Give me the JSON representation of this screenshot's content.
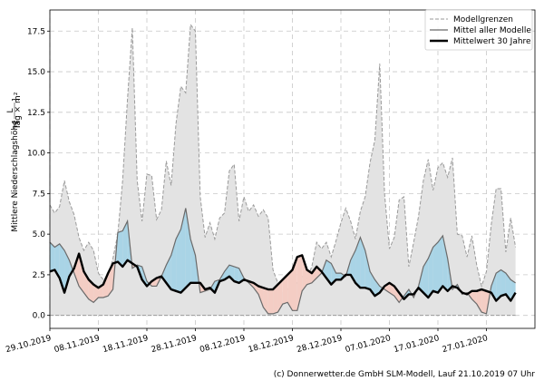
{
  "chart_data": {
    "type": "line",
    "ylabel": "Mittlere Niederschlagshöhe",
    "ylabel_unit_num": "L",
    "ylabel_unit_den": "Tag × m²",
    "ylim": [
      -0.8,
      18.8
    ],
    "yticks": [
      "0.0",
      "2.5",
      "5.0",
      "7.5",
      "10.0",
      "12.5",
      "15.0",
      "17.5"
    ],
    "ytick_values": [
      0,
      2.5,
      5,
      7.5,
      10,
      12.5,
      15,
      17.5
    ],
    "xlim": [
      0,
      100
    ],
    "xticks": [
      "29.10.2019",
      "08.11.2019",
      "18.11.2019",
      "28.11.2019",
      "08.12.2019",
      "18.12.2019",
      "28.12.2019",
      "07.01.2020",
      "17.01.2020",
      "27.01.2020"
    ],
    "xtick_values": [
      0,
      10,
      20,
      30,
      40,
      50,
      60,
      70,
      80,
      90
    ],
    "grid": true,
    "legend_position": "top-right",
    "colors": {
      "envelope_fill": "#e3e3e3",
      "envelope_line": "#9a9a9a",
      "above_fill": "#a9d4e6",
      "below_fill": "#f4cdc4",
      "model_mean": "#6a6a6a",
      "climate_mean": "#000000"
    },
    "series": [
      {
        "name": "Modellgrenzen",
        "x": [
          0,
          1,
          2,
          3,
          4,
          5,
          6,
          7,
          8,
          9,
          10,
          11,
          12,
          13,
          14,
          15,
          16,
          17,
          18,
          19,
          20,
          21,
          22,
          23,
          24,
          25,
          26,
          27,
          28,
          29,
          30,
          31,
          32,
          33,
          34,
          35,
          36,
          37,
          38,
          39,
          40,
          41,
          42,
          43,
          44,
          45,
          46,
          47,
          48,
          49,
          50,
          51,
          52,
          53,
          54,
          55,
          56,
          57,
          58,
          59,
          60,
          61,
          62,
          63,
          64,
          65,
          66,
          67,
          68,
          69,
          70,
          71,
          72,
          73,
          74,
          75,
          76,
          77,
          78,
          79,
          80,
          81,
          82,
          83,
          84,
          85,
          86,
          87,
          88,
          89,
          90,
          91,
          92,
          93,
          94,
          95,
          96
        ],
        "upper": [
          6.8,
          6.3,
          6.7,
          8.3,
          7.0,
          6.2,
          4.8,
          4.0,
          4.5,
          4.0,
          2.6,
          2.2,
          2.4,
          3.5,
          5.0,
          8.3,
          13.3,
          17.7,
          8.3,
          5.8,
          8.7,
          8.6,
          5.9,
          6.5,
          9.5,
          8.0,
          11.8,
          14.1,
          13.7,
          17.9,
          17.5,
          7.3,
          4.8,
          5.7,
          4.7,
          6.0,
          6.3,
          8.9,
          9.3,
          5.8,
          7.3,
          6.4,
          6.8,
          6.1,
          6.5,
          6.0,
          2.8,
          2.0,
          1.4,
          1.6,
          1.8,
          2.0,
          2.4,
          2.3,
          3.0,
          4.5,
          4.1,
          4.5,
          3.6,
          4.6,
          5.7,
          6.6,
          5.8,
          4.7,
          6.4,
          7.3,
          9.4,
          10.8,
          15.5,
          7.5,
          4.1,
          4.8,
          7.1,
          7.3,
          3.0,
          4.5,
          6.1,
          8.3,
          9.6,
          7.7,
          9.1,
          9.4,
          8.5,
          9.7,
          5.0,
          4.9,
          3.6,
          4.9,
          3.1,
          1.8,
          2.7,
          5.6,
          7.8,
          7.8,
          3.9,
          6.0,
          4.2
        ],
        "lower": [
          0.0,
          0.0,
          0.0,
          0.0,
          0.0,
          0.0,
          0.0,
          0.0,
          0.0,
          0.0,
          0.0,
          0.0,
          0.0,
          0.0,
          0.0,
          0.0,
          0.0,
          0.0,
          0.0,
          0.0,
          0.0,
          0.0,
          0.0,
          0.0,
          0.0,
          0.0,
          0.0,
          0.0,
          0.0,
          0.0,
          0.0,
          0.0,
          0.0,
          0.0,
          0.0,
          0.0,
          0.0,
          0.0,
          0.0,
          0.0,
          0.0,
          0.0,
          0.0,
          0.0,
          0.0,
          0.0,
          0.0,
          0.0,
          0.0,
          0.0,
          0.0,
          0.0,
          0.0,
          0.0,
          0.0,
          0.0,
          0.0,
          0.0,
          0.0,
          0.0,
          0.0,
          0.0,
          0.0,
          0.0,
          0.0,
          0.0,
          0.0,
          0.0,
          0.0,
          0.0,
          0.0,
          0.0,
          0.0,
          0.0,
          0.0,
          0.0,
          0.0,
          0.0,
          0.0,
          0.0,
          0.0,
          0.0,
          0.0,
          0.0,
          0.0,
          0.0,
          0.0,
          0.0,
          0.0,
          0.0,
          0.0,
          0.0,
          0.0,
          0.0,
          0.0,
          0.0,
          0.0
        ]
      },
      {
        "name": "Mittel aller Modelle",
        "x": [
          0,
          1,
          2,
          3,
          4,
          5,
          6,
          7,
          8,
          9,
          10,
          11,
          12,
          13,
          14,
          15,
          16,
          17,
          18,
          19,
          20,
          21,
          22,
          23,
          24,
          25,
          26,
          27,
          28,
          29,
          30,
          31,
          32,
          33,
          34,
          35,
          36,
          37,
          38,
          39,
          40,
          41,
          42,
          43,
          44,
          45,
          46,
          47,
          48,
          49,
          50,
          51,
          52,
          53,
          54,
          55,
          56,
          57,
          58,
          59,
          60,
          61,
          62,
          63,
          64,
          65,
          66,
          67,
          68,
          69,
          70,
          71,
          72,
          73,
          74,
          75,
          76,
          77,
          78,
          79,
          80,
          81,
          82,
          83,
          84,
          85,
          86,
          87,
          88,
          89,
          90,
          91,
          92,
          93,
          94,
          95,
          96
        ],
        "values": [
          4.5,
          4.2,
          4.4,
          4.0,
          3.4,
          2.6,
          1.8,
          1.4,
          1.0,
          0.8,
          1.1,
          1.1,
          1.2,
          1.6,
          5.1,
          5.2,
          5.8,
          2.9,
          3.1,
          3.0,
          2.1,
          1.8,
          1.8,
          2.4,
          3.1,
          3.7,
          4.7,
          5.3,
          6.6,
          4.7,
          3.7,
          1.4,
          1.5,
          1.6,
          2.1,
          2.2,
          2.7,
          3.1,
          3.0,
          2.9,
          2.3,
          2.0,
          1.7,
          1.3,
          0.5,
          0.1,
          0.1,
          0.2,
          0.7,
          0.8,
          0.3,
          0.3,
          1.5,
          1.9,
          2.0,
          2.3,
          2.6,
          3.4,
          3.2,
          2.6,
          2.6,
          2.4,
          3.4,
          4.0,
          4.8,
          4.0,
          2.7,
          2.2,
          1.8,
          1.6,
          1.4,
          1.2,
          0.8,
          1.2,
          1.6,
          1.1,
          1.8,
          3.0,
          3.5,
          4.2,
          4.5,
          4.9,
          3.5,
          1.6,
          1.9,
          1.3,
          1.4,
          1.0,
          0.7,
          0.2,
          0.1,
          1.8,
          2.6,
          2.8,
          2.6,
          2.2,
          2.0
        ]
      },
      {
        "name": "Mittelwert 30 Jahre",
        "x": [
          0,
          1,
          2,
          3,
          4,
          5,
          6,
          7,
          8,
          9,
          10,
          11,
          12,
          13,
          14,
          15,
          16,
          17,
          18,
          19,
          20,
          21,
          22,
          23,
          24,
          25,
          26,
          27,
          28,
          29,
          30,
          31,
          32,
          33,
          34,
          35,
          36,
          37,
          38,
          39,
          40,
          41,
          42,
          43,
          44,
          45,
          46,
          47,
          48,
          49,
          50,
          51,
          52,
          53,
          54,
          55,
          56,
          57,
          58,
          59,
          60,
          61,
          62,
          63,
          64,
          65,
          66,
          67,
          68,
          69,
          70,
          71,
          72,
          73,
          74,
          75,
          76,
          77,
          78,
          79,
          80,
          81,
          82,
          83,
          84,
          85,
          86,
          87,
          88,
          89,
          90,
          91,
          92,
          93,
          94,
          95,
          96
        ],
        "values": [
          2.7,
          2.8,
          2.3,
          1.4,
          2.4,
          2.9,
          3.8,
          2.7,
          2.2,
          1.9,
          1.7,
          1.9,
          2.6,
          3.2,
          3.3,
          3.0,
          3.4,
          3.2,
          3.0,
          2.2,
          1.8,
          2.1,
          2.3,
          2.4,
          2.0,
          1.6,
          1.5,
          1.4,
          1.7,
          2.0,
          2.0,
          2.0,
          1.6,
          1.7,
          1.4,
          2.1,
          2.2,
          2.4,
          2.1,
          2.0,
          2.2,
          2.1,
          2.0,
          1.8,
          1.7,
          1.6,
          1.6,
          1.9,
          2.2,
          2.5,
          2.8,
          3.6,
          3.7,
          2.8,
          2.6,
          3.0,
          2.7,
          2.3,
          1.9,
          2.2,
          2.2,
          2.5,
          2.5,
          2.0,
          1.7,
          1.7,
          1.6,
          1.2,
          1.4,
          1.8,
          2.0,
          1.8,
          1.4,
          1.0,
          1.3,
          1.3,
          1.7,
          1.4,
          1.1,
          1.5,
          1.4,
          1.8,
          1.5,
          1.8,
          1.7,
          1.4,
          1.3,
          1.5,
          1.5,
          1.6,
          1.5,
          1.4,
          0.9,
          1.2,
          1.3,
          0.9,
          1.4
        ]
      }
    ]
  },
  "footer": {
    "credit": "(c) Donnerwetter.de GmbH SLM-Modell, Lauf 21.10.2019 07 Uhr"
  }
}
